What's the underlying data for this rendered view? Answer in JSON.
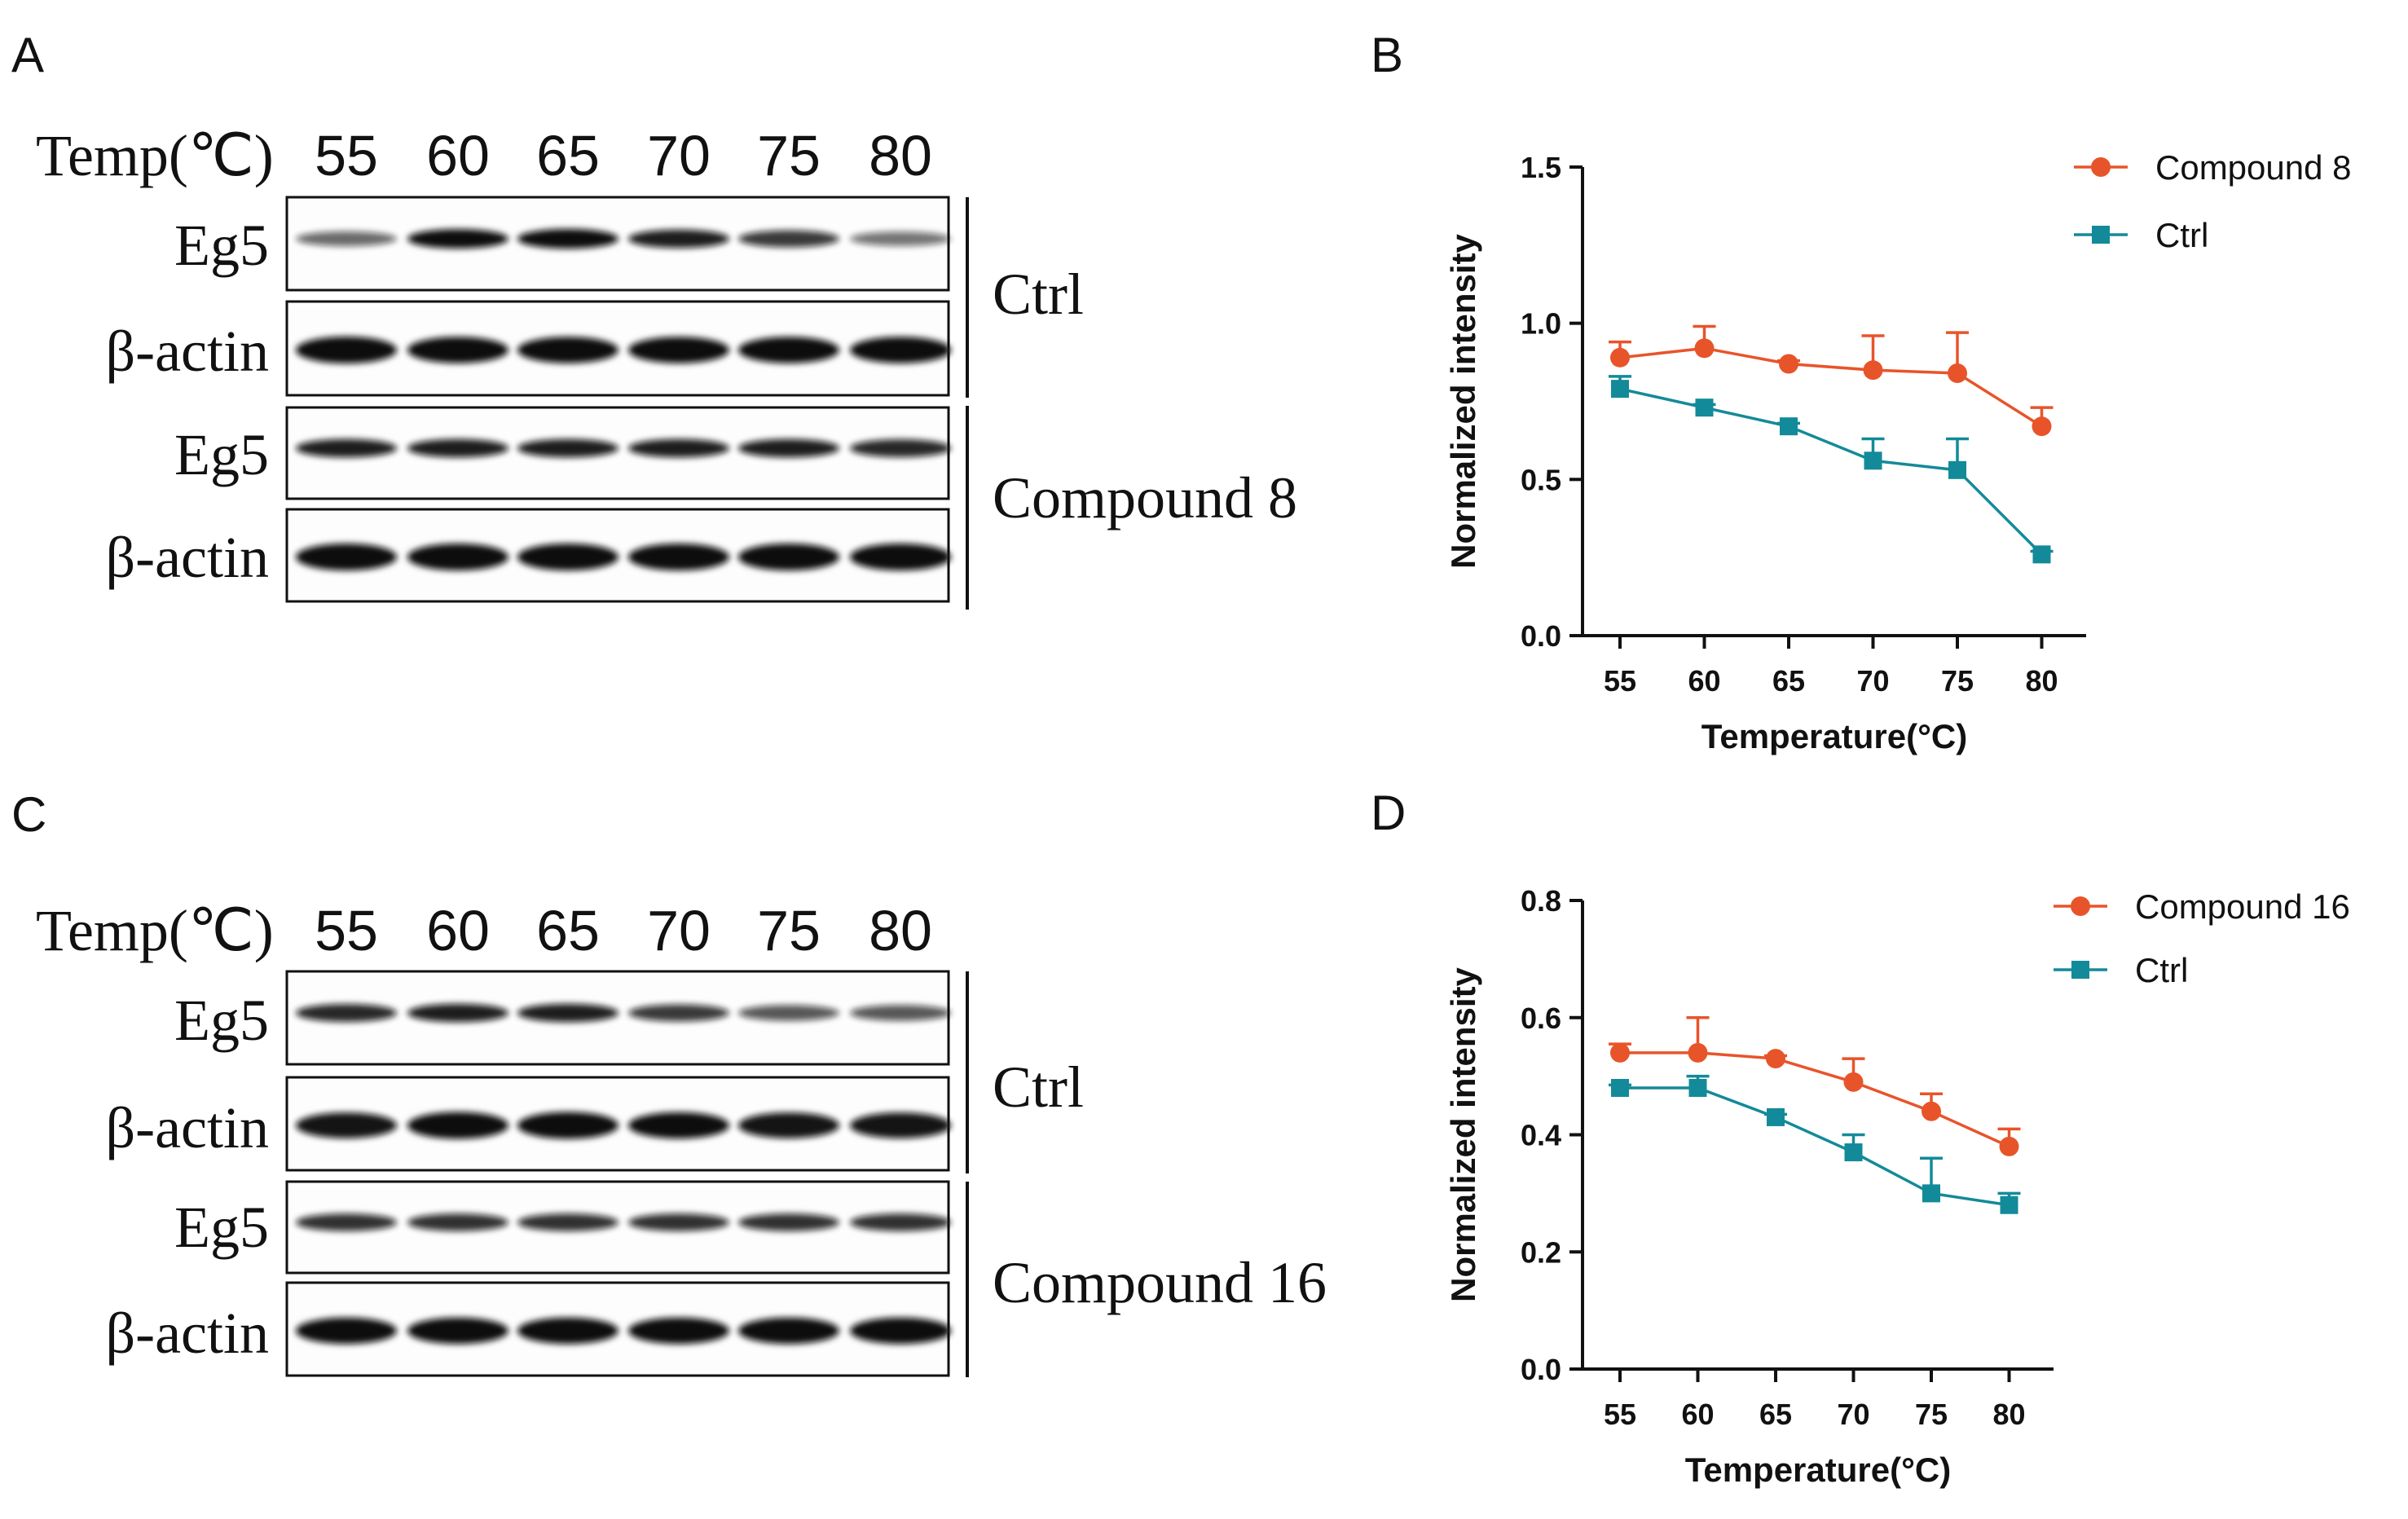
{
  "panels": {
    "A": "A",
    "B": "B",
    "C": "C",
    "D": "D"
  },
  "blots": [
    {
      "temp_title": "Temp(℃)",
      "temps": [
        "55",
        "60",
        "65",
        "70",
        "75",
        "80"
      ],
      "rows": [
        {
          "label": "Eg5",
          "band_intensity": [
            0.45,
            0.95,
            1.0,
            0.85,
            0.7,
            0.4
          ]
        },
        {
          "label": "β-actin",
          "band_intensity": [
            1.0,
            0.95,
            0.95,
            0.95,
            0.95,
            0.95
          ]
        },
        {
          "label": "Eg5",
          "band_intensity": [
            0.85,
            0.85,
            0.85,
            0.85,
            0.85,
            0.8
          ]
        },
        {
          "label": "β-actin",
          "band_intensity": [
            1.0,
            1.0,
            1.0,
            1.0,
            1.0,
            1.0
          ]
        }
      ],
      "groups": [
        "Ctrl",
        "Compound 8"
      ]
    },
    {
      "temp_title": "Temp(℃)",
      "temps": [
        "55",
        "60",
        "65",
        "70",
        "75",
        "80"
      ],
      "rows": [
        {
          "label": "Eg5",
          "band_intensity": [
            0.8,
            0.85,
            0.85,
            0.7,
            0.55,
            0.55
          ]
        },
        {
          "label": "β-actin",
          "band_intensity": [
            0.9,
            1.0,
            1.0,
            0.95,
            0.9,
            0.9
          ]
        },
        {
          "label": "Eg5",
          "band_intensity": [
            0.75,
            0.75,
            0.75,
            0.75,
            0.75,
            0.75
          ]
        },
        {
          "label": "β-actin",
          "band_intensity": [
            0.95,
            0.95,
            0.95,
            0.95,
            0.95,
            0.95
          ]
        }
      ],
      "groups": [
        "Ctrl",
        "Compound 16"
      ]
    }
  ],
  "colors": {
    "compound": "#e8542a",
    "ctrl": "#138a99",
    "axis": "#111111",
    "band": "#0d0d0d"
  },
  "chart_data": [
    {
      "type": "line",
      "title": "",
      "xlabel": "Temperature(°C)",
      "ylabel": "Normalized intensity",
      "x": [
        55,
        60,
        65,
        70,
        75,
        80
      ],
      "ylim": [
        0.0,
        1.5
      ],
      "yticks": [
        "0.0",
        "0.5",
        "1.0",
        "1.5"
      ],
      "ytick_values": [
        0.0,
        0.5,
        1.0,
        1.5
      ],
      "legend_position": "top-right",
      "series": [
        {
          "name": "Compound 8",
          "marker": "circle",
          "values": [
            0.89,
            0.92,
            0.87,
            0.85,
            0.84,
            0.67
          ],
          "errors": [
            0.05,
            0.07,
            0.01,
            0.11,
            0.13,
            0.06
          ]
        },
        {
          "name": "Ctrl",
          "marker": "square",
          "values": [
            0.79,
            0.73,
            0.67,
            0.56,
            0.53,
            0.26
          ],
          "errors": [
            0.04,
            0.01,
            0.01,
            0.07,
            0.1,
            0.01
          ]
        }
      ]
    },
    {
      "type": "line",
      "title": "",
      "xlabel": "Temperature(°C)",
      "ylabel": "Normalized intensity",
      "x": [
        55,
        60,
        65,
        70,
        75,
        80
      ],
      "ylim": [
        0.0,
        0.8
      ],
      "yticks": [
        "0.0",
        "0.2",
        "0.4",
        "0.6",
        "0.8"
      ],
      "ytick_values": [
        0.0,
        0.2,
        0.4,
        0.6,
        0.8
      ],
      "legend_position": "top-right",
      "series": [
        {
          "name": "Compound 16",
          "marker": "circle",
          "values": [
            0.54,
            0.54,
            0.53,
            0.49,
            0.44,
            0.38
          ],
          "errors": [
            0.015,
            0.06,
            0.005,
            0.04,
            0.03,
            0.03
          ]
        },
        {
          "name": "Ctrl",
          "marker": "square",
          "values": [
            0.48,
            0.48,
            0.43,
            0.37,
            0.3,
            0.28
          ],
          "errors": [
            0.005,
            0.02,
            0.005,
            0.03,
            0.06,
            0.02
          ]
        }
      ]
    }
  ]
}
